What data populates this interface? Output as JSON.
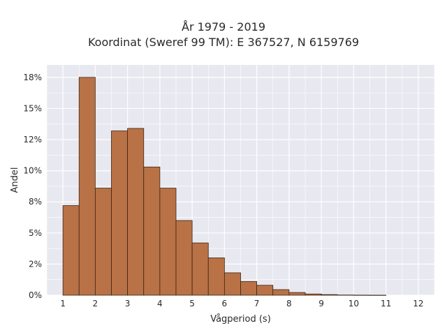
{
  "chart_data": {
    "type": "bar",
    "title": "År 1979 - 2019",
    "subtitle": "Koordinat (Sweref 99 TM): E 367527, N 6159769",
    "xlabel": "Vågperiod (s)",
    "ylabel": "Andel",
    "bin_width": 0.5,
    "bins": [
      {
        "start": 1.0,
        "value": 7.2
      },
      {
        "start": 1.5,
        "value": 17.5
      },
      {
        "start": 2.0,
        "value": 8.6
      },
      {
        "start": 2.5,
        "value": 13.2
      },
      {
        "start": 3.0,
        "value": 13.4
      },
      {
        "start": 3.5,
        "value": 10.3
      },
      {
        "start": 4.0,
        "value": 8.6
      },
      {
        "start": 4.5,
        "value": 6.0
      },
      {
        "start": 5.0,
        "value": 4.2
      },
      {
        "start": 5.5,
        "value": 3.0
      },
      {
        "start": 6.0,
        "value": 1.8
      },
      {
        "start": 6.5,
        "value": 1.1
      },
      {
        "start": 7.0,
        "value": 0.8
      },
      {
        "start": 7.5,
        "value": 0.45
      },
      {
        "start": 8.0,
        "value": 0.22
      },
      {
        "start": 8.5,
        "value": 0.1
      },
      {
        "start": 9.0,
        "value": 0.05
      },
      {
        "start": 9.5,
        "value": 0.02
      },
      {
        "start": 10.0,
        "value": 0.01
      },
      {
        "start": 10.5,
        "value": 0.005
      }
    ],
    "xlim": [
      0.5,
      12.5
    ],
    "ylim": [
      0,
      18.5
    ],
    "x_ticks": [
      1,
      2,
      3,
      4,
      5,
      6,
      7,
      8,
      9,
      10,
      11,
      12
    ],
    "y_ticks": [
      0,
      2.5,
      5,
      7.5,
      10,
      12.5,
      15,
      17.5
    ],
    "y_tick_labels": [
      "0%",
      "2%",
      "5%",
      "8%",
      "10%",
      "12%",
      "15%",
      "18%"
    ],
    "grid": true,
    "colors": {
      "bar_fill": "#b87246",
      "bar_edge": "#3d2414",
      "plot_bg": "#e8e8f0",
      "grid": "#ffffff"
    }
  }
}
